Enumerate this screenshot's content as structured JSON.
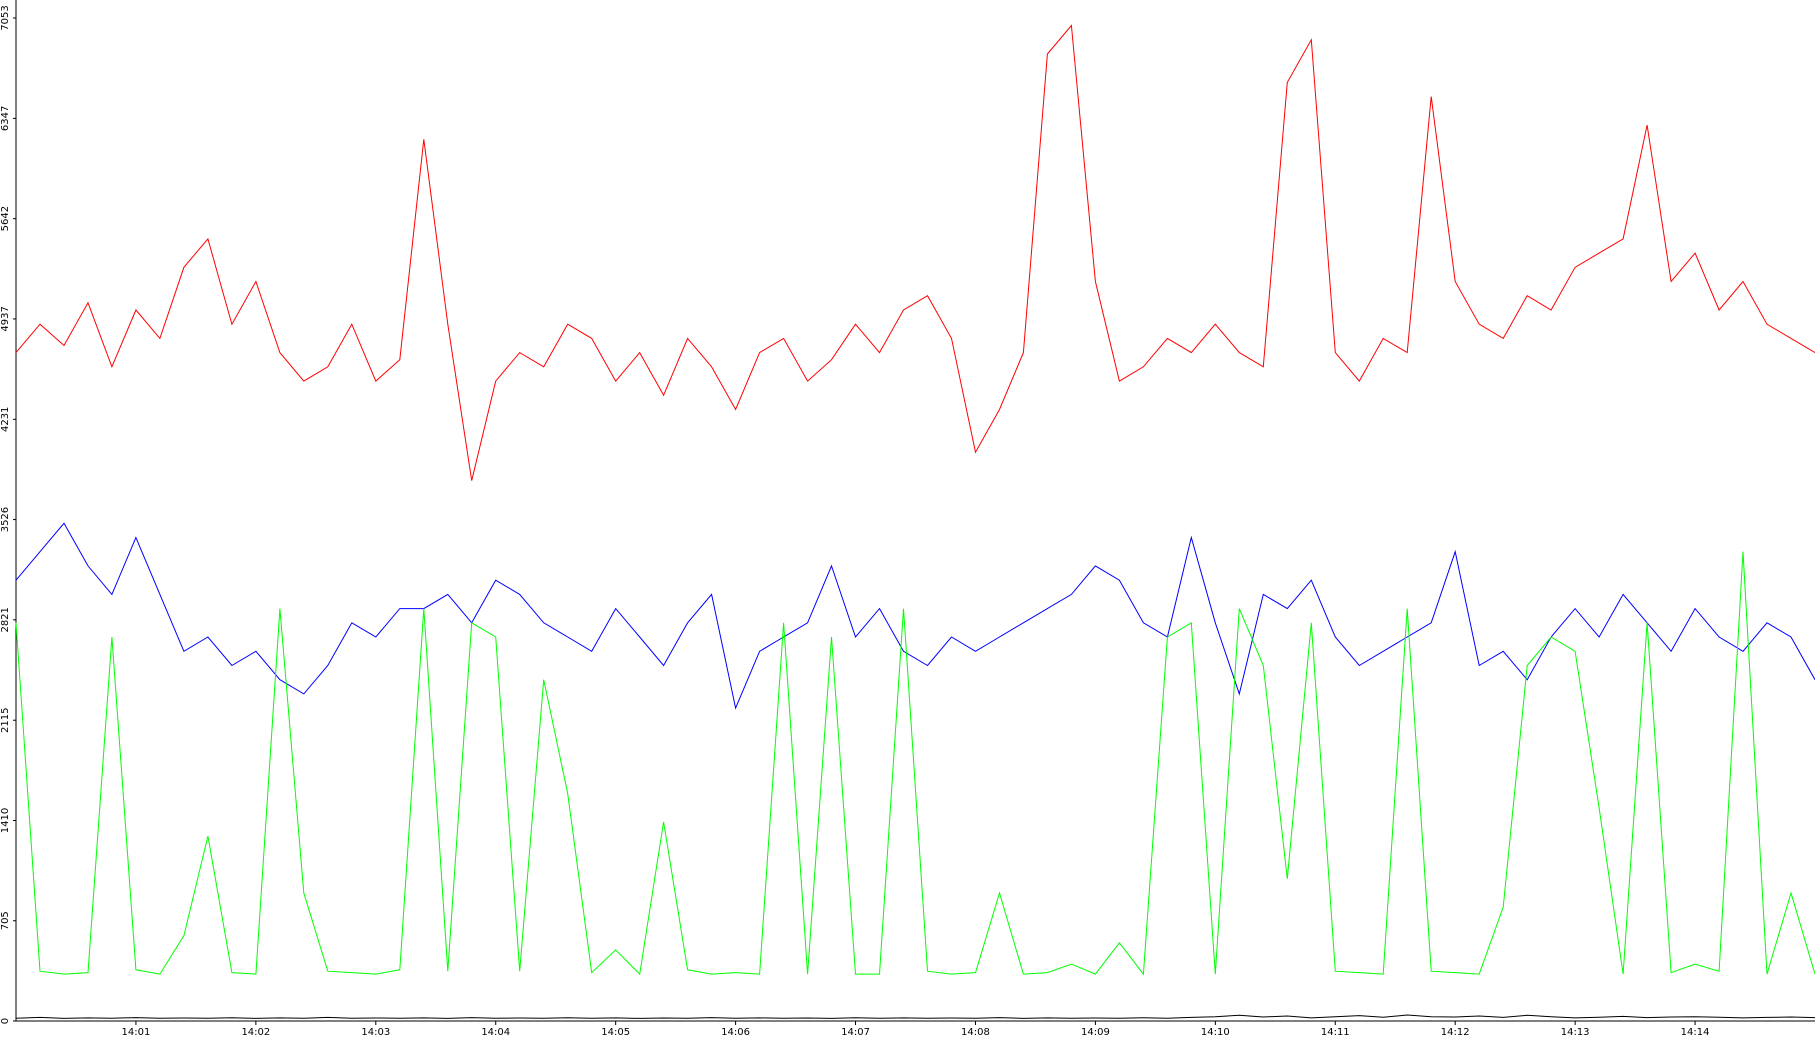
{
  "chart_data": {
    "type": "line",
    "xlim": [
      0,
      15
    ],
    "xticks": [
      {
        "value": 1,
        "label": "14:01"
      },
      {
        "value": 2,
        "label": "14:02"
      },
      {
        "value": 3,
        "label": "14:03"
      },
      {
        "value": 4,
        "label": "14:04"
      },
      {
        "value": 5,
        "label": "14:05"
      },
      {
        "value": 6,
        "label": "14:06"
      },
      {
        "value": 7,
        "label": "14:07"
      },
      {
        "value": 8,
        "label": "14:08"
      },
      {
        "value": 9,
        "label": "14:09"
      },
      {
        "value": 10,
        "label": "14:10"
      },
      {
        "value": 11,
        "label": "14:11"
      },
      {
        "value": 12,
        "label": "14:12"
      },
      {
        "value": 13,
        "label": "14:13"
      },
      {
        "value": 14,
        "label": "14:14"
      }
    ],
    "ylim": [
      0,
      7053
    ],
    "yticks": [
      0,
      705,
      1410,
      2115,
      2821,
      3526,
      4231,
      4937,
      5642,
      6347,
      7053
    ],
    "x": [
      0,
      0.2,
      0.4,
      0.6,
      0.8,
      1,
      1.2,
      1.4,
      1.6,
      1.8,
      2,
      2.2,
      2.4,
      2.6,
      2.8,
      3,
      3.2,
      3.4,
      3.6,
      3.8,
      4,
      4.2,
      4.4,
      4.6,
      4.8,
      5,
      5.2,
      5.4,
      5.6,
      5.8,
      6,
      6.2,
      6.4,
      6.6,
      6.8,
      7,
      7.2,
      7.4,
      7.6,
      7.8,
      8,
      8.2,
      8.4,
      8.6,
      8.8,
      9,
      9.2,
      9.4,
      9.6,
      9.8,
      10,
      10.2,
      10.4,
      10.6,
      10.8,
      11,
      11.2,
      11.4,
      11.6,
      11.8,
      12,
      12.2,
      12.4,
      12.6,
      12.8,
      13,
      13.2,
      13.4,
      13.6,
      13.8,
      14,
      14.2,
      14.4,
      14.6,
      14.8,
      15
    ],
    "series": [
      {
        "color": "#ff0000",
        "values": [
          4700,
          4900,
          4750,
          5050,
          4600,
          5000,
          4800,
          5300,
          5500,
          4900,
          5200,
          4700,
          4500,
          4600,
          4900,
          4500,
          4650,
          6200,
          4900,
          3800,
          4500,
          4700,
          4600,
          4900,
          4800,
          4500,
          4700,
          4400,
          4800,
          4600,
          4300,
          4700,
          4800,
          4500,
          4650,
          4900,
          4700,
          5000,
          5100,
          4800,
          4000,
          4300,
          4700,
          6800,
          7000,
          5200,
          4500,
          4600,
          4800,
          4700,
          4900,
          4700,
          4600,
          6600,
          6900,
          4700,
          4500,
          4800,
          4700,
          6500,
          5200,
          4900,
          4800,
          5100,
          5000,
          5300,
          5400,
          5500,
          6300,
          5200,
          5400,
          5000,
          5200,
          4900,
          4800,
          4700
        ]
      },
      {
        "color": "#0000ff",
        "values": [
          3100,
          3300,
          3500,
          3200,
          3000,
          3400,
          3000,
          2600,
          2700,
          2500,
          2600,
          2400,
          2300,
          2500,
          2800,
          2700,
          2900,
          2900,
          3000,
          2800,
          3100,
          3000,
          2800,
          2700,
          2600,
          2900,
          2700,
          2500,
          2800,
          3000,
          2200,
          2600,
          2700,
          2800,
          3200,
          2700,
          2900,
          2600,
          2500,
          2700,
          2600,
          2700,
          2800,
          2900,
          3000,
          3200,
          3100,
          2800,
          2700,
          3400,
          2800,
          2300,
          3000,
          2900,
          3100,
          2700,
          2500,
          2600,
          2700,
          2800,
          3300,
          2500,
          2600,
          2400,
          2700,
          2900,
          2700,
          3000,
          2800,
          2600,
          2900,
          2700,
          2600,
          2800,
          2700,
          2400
        ]
      },
      {
        "color": "#00ff00",
        "values": [
          2800,
          350,
          330,
          340,
          2700,
          360,
          330,
          600,
          1300,
          340,
          330,
          2900,
          900,
          350,
          340,
          330,
          360,
          2900,
          350,
          2800,
          2700,
          350,
          2400,
          1600,
          340,
          500,
          330,
          1400,
          360,
          330,
          340,
          330,
          2800,
          330,
          2700,
          330,
          330,
          2900,
          350,
          330,
          340,
          900,
          330,
          340,
          400,
          330,
          550,
          330,
          2700,
          2800,
          330,
          2900,
          2500,
          1000,
          2800,
          350,
          340,
          330,
          2900,
          350,
          340,
          330,
          800,
          2500,
          2700,
          2600,
          1500,
          330,
          2800,
          340,
          400,
          350,
          3300,
          330,
          900,
          330
        ]
      },
      {
        "color": "#000000",
        "values": [
          20,
          25,
          18,
          22,
          20,
          24,
          19,
          21,
          20,
          23,
          18,
          22,
          20,
          25,
          19,
          21,
          20,
          22,
          18,
          24,
          20,
          21,
          19,
          23,
          20,
          22,
          18,
          21,
          20,
          24,
          19,
          22,
          20,
          21,
          18,
          23,
          20,
          22,
          19,
          21,
          20,
          24,
          18,
          22,
          20,
          21,
          19,
          23,
          20,
          25,
          30,
          40,
          28,
          35,
          22,
          30,
          38,
          26,
          42,
          30,
          28,
          35,
          25,
          40,
          30,
          22,
          26,
          32,
          24,
          28,
          30,
          26,
          22,
          25,
          28,
          24
        ]
      }
    ]
  }
}
